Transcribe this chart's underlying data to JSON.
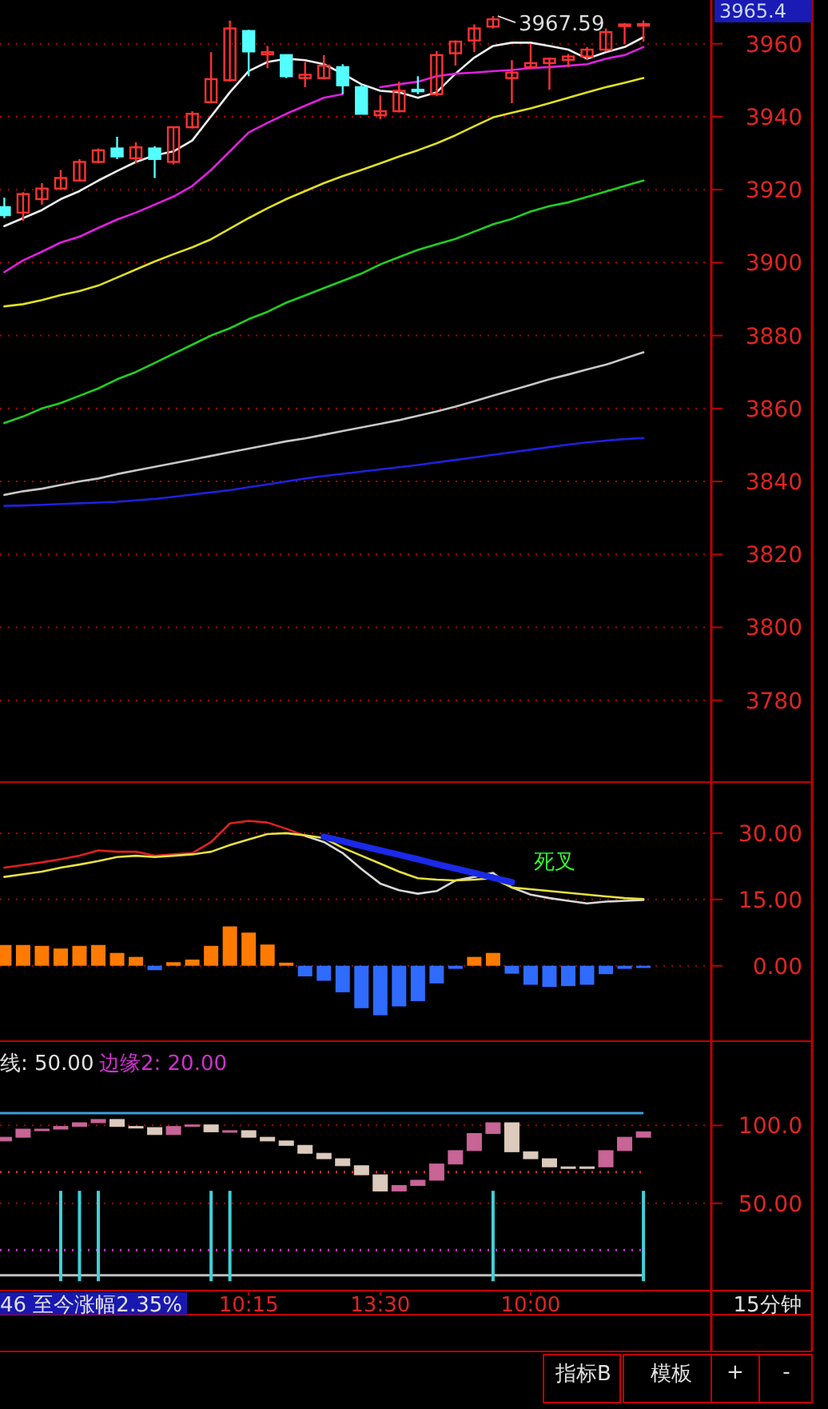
{
  "chart_data": [
    {
      "type": "candlestick",
      "categories": [
        null,
        null,
        null,
        null,
        null,
        null,
        null,
        null,
        null,
        null,
        null,
        null,
        null,
        null,
        null,
        null,
        null,
        null,
        null,
        null,
        null,
        null,
        null,
        null,
        null,
        null,
        null,
        null,
        null,
        null,
        null,
        null,
        null,
        null,
        null
      ],
      "ohlc": [
        [
          3915.2,
          3917.8,
          3912.2,
          3913.0
        ],
        [
          3913.7,
          3919.3,
          3911.5,
          3918.8
        ],
        [
          3917.4,
          3921.8,
          3915.9,
          3920.3
        ],
        [
          3920.3,
          3925.4,
          3919.9,
          3923.2
        ],
        [
          3922.5,
          3928.4,
          3922.2,
          3927.6
        ],
        [
          3927.6,
          3931.3,
          3927.2,
          3930.8
        ],
        [
          3931.3,
          3934.5,
          3928.4,
          3929.1
        ],
        [
          3928.6,
          3933.0,
          3927.2,
          3931.6
        ],
        [
          3931.3,
          3931.9,
          3923.2,
          3928.4
        ],
        [
          3927.6,
          3937.4,
          3926.9,
          3937.1
        ],
        [
          3937.1,
          3941.5,
          3936.8,
          3940.8
        ],
        [
          3944.0,
          3957.7,
          3943.7,
          3950.3
        ],
        [
          3950.0,
          3966.4,
          3949.6,
          3964.2
        ],
        [
          3963.5,
          3963.8,
          3951.1,
          3957.9
        ],
        [
          3957.1,
          3959.4,
          3953.3,
          3957.7
        ],
        [
          3956.9,
          3957.1,
          3950.6,
          3951.1
        ],
        [
          3950.6,
          3955.0,
          3948.1,
          3951.5
        ],
        [
          3950.6,
          3956.9,
          3950.3,
          3954.0
        ],
        [
          3953.6,
          3954.4,
          3946.2,
          3948.6
        ],
        [
          3948.1,
          3948.9,
          3940.8,
          3940.8
        ],
        [
          3940.4,
          3945.9,
          3939.3,
          3941.5
        ],
        [
          3941.5,
          3949.6,
          3941.2,
          3947.1
        ],
        [
          3947.4,
          3951.1,
          3946.2,
          3947.1
        ],
        [
          3946.2,
          3958.0,
          3945.6,
          3956.9
        ],
        [
          3957.4,
          3960.9,
          3954.0,
          3960.6
        ],
        [
          3960.9,
          3965.3,
          3957.7,
          3964.2
        ],
        [
          3964.7,
          3967.59,
          3964.2,
          3966.7
        ],
        [
          3950.6,
          3955.5,
          3943.7,
          3952.1
        ],
        [
          3953.6,
          3959.9,
          3953.0,
          3954.7
        ],
        [
          3954.7,
          3956.2,
          3947.4,
          3955.9
        ],
        [
          3955.6,
          3957.2,
          3953.6,
          3956.5
        ],
        [
          3956.5,
          3959.1,
          3955.5,
          3958.4
        ],
        [
          3958.4,
          3964.2,
          3957.9,
          3963.2
        ],
        [
          3965.0,
          3965.7,
          3959.9,
          3965.3
        ],
        [
          3965.0,
          3966.4,
          3960.6,
          3965.4
        ]
      ],
      "colors": [
        "#54ffff",
        "#ff3232",
        "#ff3232",
        "#ff3232",
        "#ff3232",
        "#ff3232",
        "#54ffff",
        "#ff3232",
        "#54ffff",
        "#ff3232",
        "#ff3232",
        "#ff3232",
        "#ff3232",
        "#54ffff",
        "#ff3232",
        "#54ffff",
        "#ff3232",
        "#ff3232",
        "#54ffff",
        "#54ffff",
        "#ff3232",
        "#ff3232",
        "#54ffff",
        "#ff3232",
        "#ff3232",
        "#ff3232",
        "#ff3232",
        "#ff3232",
        "#ff3232",
        "#ff3232",
        "#ff3232",
        "#ff3232",
        "#ff3232",
        "#ff3232",
        "#ff3232"
      ],
      "series": [
        {
          "type": "line",
          "color": "#f0f0f0",
          "values": [
            3910.0,
            3912.2,
            3914.4,
            3917.4,
            3919.6,
            3922.5,
            3925.1,
            3927.6,
            3929.4,
            3930.5,
            3933.5,
            3940.1,
            3946.7,
            3952.5,
            3955.0,
            3955.9,
            3955.5,
            3954.4,
            3951.8,
            3948.9,
            3947.1,
            3946.7,
            3945.2,
            3946.7,
            3951.8,
            3956.2,
            3959.4,
            3960.3,
            3960.3,
            3959.4,
            3958.4,
            3955.9,
            3957.7,
            3959.1,
            3961.8
          ]
        },
        {
          "type": "line",
          "color": "#e020e0",
          "values": [
            3897.4,
            3900.6,
            3903.0,
            3905.5,
            3907.1,
            3909.5,
            3911.8,
            3913.7,
            3915.9,
            3918.1,
            3921.0,
            3925.4,
            3930.5,
            3935.7,
            3938.3,
            3940.8,
            3943.0,
            3945.2,
            3946.2,
            null,
            3948.1,
            3948.9,
            3949.6,
            3951.1,
            3951.8,
            3952.1,
            3952.5,
            3952.8,
            3953.3,
            3953.6,
            3954.0,
            3954.4,
            3955.9,
            3956.9,
            3959.1
          ]
        },
        {
          "type": "line",
          "color": "#e0e020",
          "values": [
            3888.0,
            3888.6,
            3889.7,
            3891.1,
            3892.2,
            3893.7,
            3895.9,
            3898.1,
            3900.3,
            3902.3,
            3904.2,
            3906.4,
            3909.3,
            3912.2,
            3914.9,
            3917.4,
            3919.6,
            3921.8,
            3923.7,
            3925.4,
            3927.2,
            3929.1,
            3930.8,
            3932.7,
            3934.9,
            3937.4,
            3939.8,
            3941.1,
            3942.3,
            3943.7,
            3945.2,
            3946.7,
            3948.1,
            3949.3,
            3950.6
          ]
        },
        {
          "type": "line",
          "color": "#20d020",
          "values": [
            3856.0,
            3857.8,
            3860.0,
            3861.5,
            3863.5,
            3865.5,
            3868.0,
            3870.0,
            3872.5,
            3875.0,
            3877.5,
            3880.0,
            3882.0,
            3884.5,
            3886.5,
            3889.0,
            3891.0,
            3893.0,
            3895.0,
            3897.0,
            3899.5,
            3901.5,
            3903.5,
            3905.0,
            3906.5,
            3908.5,
            3910.5,
            3912.0,
            3914.0,
            3915.5,
            3916.5,
            3918.0,
            3919.5,
            3921.0,
            3922.5
          ]
        },
        {
          "type": "line",
          "color": "#c8c8c8",
          "values": [
            3836.3,
            3837.3,
            3838.0,
            3839.0,
            3840.0,
            3840.8,
            3842.0,
            3843.0,
            3844.0,
            3845.0,
            3846.0,
            3847.0,
            3848.0,
            3849.0,
            3850.0,
            3851.0,
            3851.8,
            3852.8,
            3853.8,
            3854.8,
            3855.8,
            3856.8,
            3858.0,
            3859.2,
            3860.5,
            3862.0,
            3863.5,
            3865.0,
            3866.5,
            3868.0,
            3869.3,
            3870.7,
            3872.0,
            3873.7,
            3875.4
          ]
        },
        {
          "type": "line",
          "color": "#2020e0",
          "values": [
            3833.3,
            3833.4,
            3833.6,
            3833.8,
            3834.0,
            3834.2,
            3834.4,
            3834.8,
            3835.2,
            3835.8,
            3836.4,
            3837.0,
            3837.6,
            3838.4,
            3839.2,
            3840.0,
            3840.8,
            3841.5,
            3842.1,
            3842.7,
            3843.3,
            3843.9,
            3844.5,
            3845.2,
            3845.9,
            3846.6,
            3847.3,
            3848.0,
            3848.7,
            3849.4,
            3850.1,
            3850.7,
            3851.2,
            3851.6,
            3851.9
          ]
        }
      ],
      "ylim": [
        3758,
        3972
      ],
      "yticks": [
        3780,
        3800,
        3820,
        3840,
        3860,
        3880,
        3900,
        3920,
        3940,
        3960
      ],
      "grid": "y",
      "tick_labels": "y",
      "annotations": [
        "3967.59",
        "3965.4"
      ]
    },
    {
      "type": "bar",
      "categories": [
        null,
        null,
        null,
        null,
        null,
        null,
        null,
        null,
        null,
        null,
        null,
        null,
        null,
        null,
        null,
        null,
        null,
        null,
        null,
        null,
        null,
        null,
        null,
        null,
        null,
        null,
        null,
        null,
        null,
        null,
        null,
        null,
        null,
        null,
        null
      ],
      "series": [
        {
          "type": "bar",
          "values": [
            4.7,
            4.7,
            4.5,
            3.9,
            4.5,
            4.7,
            2.9,
            2.0,
            -1.0,
            0.8,
            1.4,
            4.5,
            8.9,
            7.5,
            4.8,
            0.7,
            -2.4,
            -3.4,
            -6.0,
            -9.6,
            -11.2,
            -9.2,
            -8.0,
            -4.0,
            -0.7,
            2.0,
            2.9,
            -1.8,
            -4.3,
            -4.8,
            -4.6,
            -4.3,
            -1.9,
            -0.7,
            -0.5
          ],
          "colors": [
            "#ff7a00",
            "#ff7a00",
            "#ff7a00",
            "#ff7a00",
            "#ff7a00",
            "#ff7a00",
            "#ff7a00",
            "#ff7a00",
            "#2f6bff",
            "#ff7a00",
            "#ff7a00",
            "#ff7a00",
            "#ff7a00",
            "#ff7a00",
            "#ff7a00",
            "#ff7a00",
            "#2f6bff",
            "#2f6bff",
            "#2f6bff",
            "#2f6bff",
            "#2f6bff",
            "#2f6bff",
            "#2f6bff",
            "#2f6bff",
            "#2f6bff",
            "#ff7a00",
            "#ff7a00",
            "#2f6bff",
            "#2f6bff",
            "#2f6bff",
            "#2f6bff",
            "#2f6bff",
            "#2f6bff",
            "#2f6bff",
            "#2f6bff"
          ]
        },
        {
          "type": "line",
          "color": "#e02020",
          "values": [
            22.2,
            22.8,
            23.4,
            24.1,
            24.9,
            26.1,
            25.8,
            25.8,
            24.9,
            25.2,
            25.5,
            28.0,
            32.2,
            32.8,
            32.4,
            31.0,
            29.4,
            null,
            null,
            null,
            null,
            null,
            null,
            null,
            null,
            null,
            null,
            null,
            null,
            null,
            null,
            null,
            null,
            null,
            null
          ]
        },
        {
          "type": "line",
          "color": "#d8d8d8",
          "values": [
            null,
            null,
            null,
            null,
            null,
            null,
            null,
            null,
            null,
            null,
            null,
            null,
            null,
            null,
            null,
            null,
            29.4,
            28.0,
            25.5,
            21.9,
            18.6,
            17.1,
            16.3,
            16.9,
            19.3,
            20.1,
            21.0,
            17.7,
            16.1,
            15.3,
            14.7,
            14.1,
            14.5,
            14.7,
            14.9
          ]
        },
        {
          "type": "line",
          "color": "#e8e040",
          "values": [
            20.1,
            20.7,
            21.3,
            22.2,
            22.9,
            23.7,
            24.6,
            24.9,
            24.6,
            24.9,
            25.2,
            25.8,
            27.3,
            28.6,
            29.8,
            30.0,
            29.5,
            28.9,
            26.7,
            24.9,
            23.1,
            21.3,
            19.8,
            19.5,
            19.3,
            19.5,
            19.8,
            17.7,
            17.3,
            16.9,
            16.5,
            16.1,
            15.7,
            15.3,
            15.1
          ]
        },
        {
          "type": "line",
          "color": "#1a2ae8",
          "values": [
            null,
            null,
            null,
            null,
            null,
            null,
            null,
            null,
            null,
            null,
            null,
            null,
            null,
            null,
            null,
            null,
            null,
            29.2,
            28.2,
            27.1,
            26.1,
            25.1,
            24.1,
            23.0,
            22.0,
            21.0,
            19.9,
            18.9,
            null,
            null,
            null,
            null,
            null,
            null,
            null
          ]
        }
      ],
      "ylim": [
        -16.7,
        41.2
      ],
      "yticks": [
        {
          "value": 0,
          "label": "0.00"
        },
        {
          "value": 15,
          "label": "15.00"
        },
        {
          "value": 30,
          "label": "30.00"
        }
      ],
      "grid": "y",
      "tick_labels": "y",
      "annotations": [
        "死叉"
      ]
    },
    {
      "type": "candlestick",
      "categories": [
        null,
        null,
        null,
        null,
        null,
        null,
        null,
        null,
        null,
        null,
        null,
        null,
        null,
        "10:15",
        null,
        null,
        null,
        null,
        null,
        null,
        "13:30",
        null,
        null,
        null,
        null,
        null,
        null,
        null,
        "10:00",
        null,
        null,
        null,
        null,
        null,
        null
      ],
      "ohlc": [
        [
          90.0,
          92.4,
          90.0,
          92.4
        ],
        [
          92.4,
          97.6,
          92.4,
          97.6
        ],
        [
          97.6,
          97.6,
          97.6,
          97.6
        ],
        [
          97.6,
          99.3,
          97.6,
          99.3
        ],
        [
          99.3,
          101.7,
          99.3,
          101.7
        ],
        [
          101.7,
          103.8,
          101.7,
          103.8
        ],
        [
          103.8,
          103.8,
          99.3,
          99.3
        ],
        [
          99.3,
          99.3,
          98.6,
          98.6
        ],
        [
          98.6,
          98.6,
          94.1,
          94.1
        ],
        [
          94.1,
          99.3,
          94.1,
          99.3
        ],
        [
          99.3,
          100.3,
          99.3,
          100.3
        ],
        [
          100.3,
          100.3,
          95.9,
          95.9
        ],
        [
          95.9,
          96.6,
          95.9,
          96.6
        ],
        [
          96.6,
          96.6,
          92.4,
          92.4
        ],
        [
          92.4,
          92.4,
          90.0,
          90.0
        ],
        [
          90.0,
          90.0,
          87.2,
          87.2
        ],
        [
          87.2,
          87.2,
          82.1,
          82.1
        ],
        [
          82.1,
          82.1,
          78.6,
          78.6
        ],
        [
          78.6,
          78.6,
          74.1,
          74.1
        ],
        [
          74.1,
          74.1,
          68.3,
          68.3
        ],
        [
          68.3,
          68.3,
          57.9,
          57.9
        ],
        [
          57.9,
          61.4,
          57.9,
          61.4
        ],
        [
          61.4,
          64.8,
          61.4,
          64.8
        ],
        [
          64.8,
          75.2,
          64.8,
          75.2
        ],
        [
          75.2,
          83.8,
          75.2,
          83.8
        ],
        [
          83.8,
          94.8,
          83.8,
          94.8
        ],
        [
          94.8,
          101.7,
          94.8,
          101.7
        ],
        [
          101.7,
          101.7,
          83.1,
          83.1
        ],
        [
          83.1,
          83.1,
          78.6,
          78.6
        ],
        [
          78.6,
          78.6,
          73.4,
          73.4
        ],
        [
          73.4,
          73.4,
          73.4,
          73.4
        ],
        [
          73.4,
          73.4,
          73.4,
          73.4
        ],
        [
          73.4,
          83.8,
          73.4,
          83.8
        ],
        [
          83.8,
          92.4,
          83.8,
          92.4
        ],
        [
          92.4,
          95.9,
          92.4,
          95.9
        ]
      ],
      "colors": [
        "#c86496",
        "#c86496",
        "#c86496",
        "#c86496",
        "#c86496",
        "#c86496",
        "#dccabc",
        "#dccabc",
        "#dccabc",
        "#c86496",
        "#c86496",
        "#dccabc",
        "#c86496",
        "#dccabc",
        "#dccabc",
        "#dccabc",
        "#dccabc",
        "#dccabc",
        "#dccabc",
        "#dccabc",
        "#dccabc",
        "#c86496",
        "#c86496",
        "#c86496",
        "#c86496",
        "#c86496",
        "#c86496",
        "#dccabc",
        "#dccabc",
        "#dccabc",
        "#dccabc",
        "#dccabc",
        "#c86496",
        "#c86496",
        "#c86496"
      ],
      "series": [
        {
          "type": "bar",
          "color": "#40d0d8",
          "values": [
            null,
            null,
            null,
            58,
            58,
            58,
            null,
            null,
            null,
            null,
            null,
            58,
            58,
            null,
            null,
            null,
            null,
            null,
            null,
            null,
            null,
            null,
            null,
            null,
            null,
            null,
            58,
            null,
            null,
            null,
            null,
            null,
            null,
            null,
            58
          ]
        }
      ],
      "ref_lines": [
        {
          "axis": "y",
          "value": 107.9,
          "color": "#3aa0e0",
          "line_style": "solid"
        },
        {
          "axis": "y",
          "value": 3.8,
          "color": "#c0c0c0",
          "line_style": "solid"
        },
        {
          "axis": "y",
          "value": 70,
          "color": "#d03030",
          "line_style": "dotted"
        },
        {
          "axis": "y",
          "value": 20,
          "color": "#d030d0",
          "line_style": "dotted"
        }
      ],
      "ylim": [
        -4,
        152
      ],
      "yticks": [
        {
          "value": 50,
          "label": "50.00"
        },
        {
          "value": 100,
          "label": "100.0"
        }
      ],
      "grid": "y",
      "annotations": [
        "线: 50.00",
        "边缘2: 20.00",
        "46 至今涨幅2.35%",
        "15分钟",
        "指标B",
        "模板",
        "+",
        "-"
      ]
    }
  ]
}
